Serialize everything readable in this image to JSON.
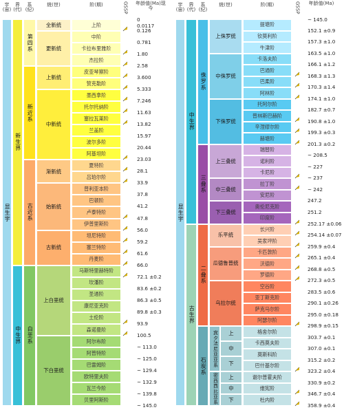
{
  "colors": {
    "eonPhanerozoic": "#9fd9ee",
    "eraCenozoic": "#f4ee3c",
    "eraMesozoic": "#38c0d8",
    "eraPaleozoic": "#9dd3b5",
    "periodQuaternary": "#fff8a8",
    "periodNeogene": "#ffe21c",
    "periodPaleogene": "#fdaa68",
    "periodCretaceous": "#82c863",
    "periodJurassic": "#49bfe8",
    "periodTriassic": "#9a4ea6",
    "periodPermian": "#ef6b45",
    "periodCarboniferous": "#67aab5",
    "spikeGold": "#e0b800"
  },
  "chart_data": {
    "type": "table",
    "title": "",
    "panels": [
      {
        "headers": {
          "eon": "宇(宙)",
          "era": "界(代)",
          "period": "系(纪)",
          "epoch": "统(世)",
          "stage": "阶(期)",
          "age": "年龄值(Ma)现今",
          "gssp": "GSSP"
        },
        "eons": [
          {
            "name": "显生宇",
            "from": 0,
            "to": 145.0,
            "color": "eonPhanerozoic"
          }
        ],
        "eras": [
          {
            "name": "新生界",
            "from": 0,
            "to": 66.0,
            "color": "eraCenozoic"
          },
          {
            "name": "中生界",
            "from": 66.0,
            "to": 145.0,
            "color": "eraMesozoic"
          }
        ],
        "periods": [
          {
            "name": "第四系",
            "from": 0,
            "to": 2.58,
            "color": "periodQuaternary"
          },
          {
            "name": "新近系",
            "from": 2.58,
            "to": 23.03,
            "color": "periodNeogene"
          },
          {
            "name": "古近系",
            "from": 23.03,
            "to": 66.0,
            "color": "periodPaleogene"
          },
          {
            "name": "白垩系",
            "from": 66.0,
            "to": 145.0,
            "color": "periodCretaceous"
          }
        ],
        "epochs": [
          {
            "name": "全新统",
            "from": 0,
            "to": 0.0117
          },
          {
            "name": "更新统",
            "from": 0.0117,
            "to": 2.58
          },
          {
            "name": "上新统",
            "from": 2.58,
            "to": 5.333
          },
          {
            "name": "中新统",
            "from": 5.333,
            "to": 23.03
          },
          {
            "name": "渐新统",
            "from": 23.03,
            "to": 33.9
          },
          {
            "name": "始新统",
            "from": 33.9,
            "to": 56.0
          },
          {
            "name": "古新统",
            "from": 56.0,
            "to": 66.0
          },
          {
            "name": "上白垩统",
            "from": 66.0,
            "to": 100.5
          },
          {
            "name": "下白垩统",
            "from": 100.5,
            "to": 145.0
          }
        ],
        "stages": [
          {
            "name": "上阶",
            "base": "0.126",
            "gssp": true
          },
          {
            "name": "中阶",
            "base": "0.781",
            "gssp": false
          },
          {
            "name": "卡拉布里雅阶",
            "base": "1.80",
            "gssp": true
          },
          {
            "name": "杰拉阶",
            "base": "2.58",
            "gssp": true
          },
          {
            "name": "皮亚琴察阶",
            "base": "3.600",
            "gssp": true
          },
          {
            "name": "赞克勒阶",
            "base": "5.333",
            "gssp": true
          },
          {
            "name": "墨西拿阶",
            "base": "7.246",
            "gssp": true
          },
          {
            "name": "托尔托纳阶",
            "base": "11.63",
            "gssp": true
          },
          {
            "name": "塞拉瓦莱阶",
            "base": "13.82",
            "gssp": true
          },
          {
            "name": "兰盖阶",
            "base": "15.97",
            "gssp": false
          },
          {
            "name": "波尔多阶",
            "base": "20.44",
            "gssp": false
          },
          {
            "name": "阿基坦阶",
            "base": "23.03",
            "gssp": true
          },
          {
            "name": "夏特阶",
            "base": "28.1",
            "gssp": true
          },
          {
            "name": "吕珀尔阶",
            "base": "33.9",
            "gssp": true
          },
          {
            "name": "普利亚本阶",
            "base": "37.8",
            "gssp": false
          },
          {
            "name": "巴顿阶",
            "base": "41.2",
            "gssp": false
          },
          {
            "name": "卢泰特阶",
            "base": "47.8",
            "gssp": true
          },
          {
            "name": "伊普里斯阶",
            "base": "56.0",
            "gssp": true
          },
          {
            "name": "坦尼特阶",
            "base": "59.2",
            "gssp": true
          },
          {
            "name": "塞兰特阶",
            "base": "61.6",
            "gssp": true
          },
          {
            "name": "丹麦阶",
            "base": "66.0",
            "gssp": true
          },
          {
            "name": "马斯特里赫特阶",
            "base": "72.1 ±0.2",
            "gssp": true
          },
          {
            "name": "坎潘阶",
            "base": "83.6 ±0.2",
            "gssp": false
          },
          {
            "name": "圣通阶",
            "base": "86.3 ±0.5",
            "gssp": false
          },
          {
            "name": "康尼亚克阶",
            "base": "89.8 ±0.3",
            "gssp": false
          },
          {
            "name": "土伦阶",
            "base": "93.9",
            "gssp": true
          },
          {
            "name": "森诺曼阶",
            "base": "100.5",
            "gssp": true
          },
          {
            "name": "阿尔布阶",
            "base": "~ 113.0",
            "gssp": false
          },
          {
            "name": "阿普特阶",
            "base": "~ 125.0",
            "gssp": false
          },
          {
            "name": "巴雷姆阶",
            "base": "~ 129.4",
            "gssp": false
          },
          {
            "name": "欧特里夫阶",
            "base": "~ 132.9",
            "gssp": false
          },
          {
            "name": "瓦兰今阶",
            "base": "~ 139.8",
            "gssp": false
          },
          {
            "name": "贝里阿斯阶",
            "base": "~ 145.0",
            "gssp": false
          }
        ],
        "top_age": "0",
        "extra_ages": [
          "0.0117"
        ]
      },
      {
        "headers": {
          "eon": "宇(宙)",
          "era": "界(代)",
          "period": "系(纪)",
          "epoch": "统(世)",
          "stage": "阶(期)",
          "age": "年龄值(Ma)",
          "gssp": "GSSP"
        },
        "eons": [
          {
            "name": "显生宇",
            "from": 145.0,
            "to": 358.9,
            "color": "eonPhanerozoic"
          }
        ],
        "eras": [
          {
            "name": "中生界",
            "from": 145.0,
            "to": 252.17,
            "color": "eraMesozoic"
          },
          {
            "name": "古生界",
            "from": 252.17,
            "to": 358.9,
            "color": "eraPaleozoic"
          }
        ],
        "periods": [
          {
            "name": "侏罗系",
            "from": 145.0,
            "to": 201.3,
            "color": "periodJurassic"
          },
          {
            "name": "三叠系",
            "from": 201.3,
            "to": 252.17,
            "color": "periodTriassic"
          },
          {
            "name": "二叠系",
            "from": 252.17,
            "to": 298.9,
            "color": "periodPermian"
          },
          {
            "name": "石炭系",
            "from": 298.9,
            "to": 358.9,
            "color": "periodCarboniferous"
          }
        ],
        "epochs": [
          {
            "name": "上侏罗统",
            "from": 145.0,
            "to": 163.5
          },
          {
            "name": "中侏罗统",
            "from": 163.5,
            "to": 174.1
          },
          {
            "name": "下侏罗统",
            "from": 174.1,
            "to": 201.3
          },
          {
            "name": "上三叠统",
            "from": 201.3,
            "to": 237
          },
          {
            "name": "中三叠统",
            "from": 237,
            "to": 247.2
          },
          {
            "name": "下三叠统",
            "from": 247.2,
            "to": 252.17
          },
          {
            "name": "乐平统",
            "from": 252.17,
            "to": 259.9
          },
          {
            "name": "瓜德鲁普统",
            "from": 259.9,
            "to": 272.3
          },
          {
            "name": "乌拉尔统",
            "from": 272.3,
            "to": 298.9
          }
        ],
        "stages": [
          {
            "name": "提塘阶",
            "base": "152.1 ±0.9",
            "gssp": false
          },
          {
            "name": "钦莫利阶",
            "base": "157.3 ±1.0",
            "gssp": false
          },
          {
            "name": "牛津阶",
            "base": "163.5 ±1.0",
            "gssp": false
          },
          {
            "name": "卡洛夫阶",
            "base": "166.1 ±1.2",
            "gssp": false
          },
          {
            "name": "巴通阶",
            "base": "168.3 ±1.3",
            "gssp": true
          },
          {
            "name": "巴柔阶",
            "base": "170.3 ±1.4",
            "gssp": true
          },
          {
            "name": "阿林阶",
            "base": "174.1 ±1.0",
            "gssp": true
          },
          {
            "name": "托阿尔阶",
            "base": "182.7 ±0.7",
            "gssp": false
          },
          {
            "name": "普林斯巴赫阶",
            "base": "190.8 ±1.0",
            "gssp": true
          },
          {
            "name": "辛涅缪尔阶",
            "base": "199.3 ±0.3",
            "gssp": true
          },
          {
            "name": "赫塘阶",
            "base": "201.3 ±0.2",
            "gssp": true
          },
          {
            "name": "瑞替阶",
            "base": "~ 208.5",
            "gssp": false
          },
          {
            "name": "诺利阶",
            "base": "~ 227",
            "gssp": false
          },
          {
            "name": "卡尼阶",
            "base": "~ 237",
            "gssp": true
          },
          {
            "name": "拉丁阶",
            "base": "~ 242",
            "gssp": true
          },
          {
            "name": "安尼阶",
            "base": "247.2",
            "gssp": false
          },
          {
            "name": "奥伦尼克阶",
            "base": "251.2",
            "gssp": false
          },
          {
            "name": "印度阶",
            "base": "252.17 ±0.06",
            "gssp": true
          },
          {
            "name": "长兴阶",
            "base": "254.14 ±0.07",
            "gssp": true
          },
          {
            "name": "吴家坪阶",
            "base": "259.9 ±0.4",
            "gssp": true
          },
          {
            "name": "卡匹敦阶",
            "base": "265.1 ±0.4",
            "gssp": true
          },
          {
            "name": "沃德阶",
            "base": "268.8 ±0.5",
            "gssp": true
          },
          {
            "name": "罗德阶",
            "base": "272.3 ±0.5",
            "gssp": true
          },
          {
            "name": "空谷阶",
            "base": "283.5 ±0.6",
            "gssp": false
          },
          {
            "name": "亚丁斯克阶",
            "base": "290.1 ±0.26",
            "gssp": false
          },
          {
            "name": "萨克马尔阶",
            "base": "295.0 ±0.18",
            "gssp": false
          },
          {
            "name": "阿瑟尔阶",
            "base": "298.9 ±0.15",
            "gssp": true
          },
          {
            "name": "格舍尔阶",
            "base": "303.7 ±0.1",
            "gssp": false
          },
          {
            "name": "卡西莫夫阶",
            "base": "307.0 ±0.1",
            "gssp": false
          },
          {
            "name": "莫斯科阶",
            "base": "315.2 ±0.2",
            "gssp": false
          },
          {
            "name": "巴什基尔阶",
            "base": "323.2 ±0.4",
            "gssp": true
          },
          {
            "name": "谢尔普霍夫阶",
            "base": "330.9 ±0.2",
            "gssp": false
          },
          {
            "name": "维宪阶",
            "base": "346.7 ±0.4",
            "gssp": true
          },
          {
            "name": "杜内阶",
            "base": "358.9 ±0.4",
            "gssp": true
          }
        ],
        "top_age": "~ 145.0",
        "carboniferous_subsystems": [
          {
            "name": "宾夕法尼亚亚系",
            "epochs": [
              "上",
              "中",
              "下"
            ]
          },
          {
            "name": "密西西比亚系",
            "epochs": [
              "上",
              "中",
              "下"
            ]
          }
        ]
      }
    ]
  }
}
